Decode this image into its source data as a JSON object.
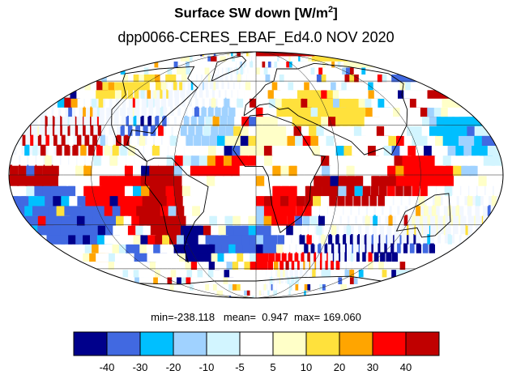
{
  "title": {
    "text": "Surface SW down [W/m",
    "superscript": "2",
    "suffix": "]"
  },
  "subtitle": "dpp0066-CERES_EBAF_Ed4.0  NOV 2020",
  "stats": {
    "min_label": "min=",
    "min": "-238.118",
    "mean_label": "mean=",
    "mean": "0.947",
    "max_label": "max=",
    "max": "169.060"
  },
  "map": {
    "projection": "mollweide",
    "graticule": true,
    "coastlines": true
  },
  "colorbar": {
    "colors": [
      "#00008b",
      "#4169e1",
      "#00bfff",
      "#a0d2ff",
      "#d2f5ff",
      "#ffffff",
      "#ffffc8",
      "#ffe13c",
      "#ffa500",
      "#ff0000",
      "#c00000"
    ],
    "labels": [
      "-40",
      "-30",
      "-20",
      "-10",
      "-5",
      "5",
      "10",
      "20",
      "30",
      "40"
    ]
  }
}
